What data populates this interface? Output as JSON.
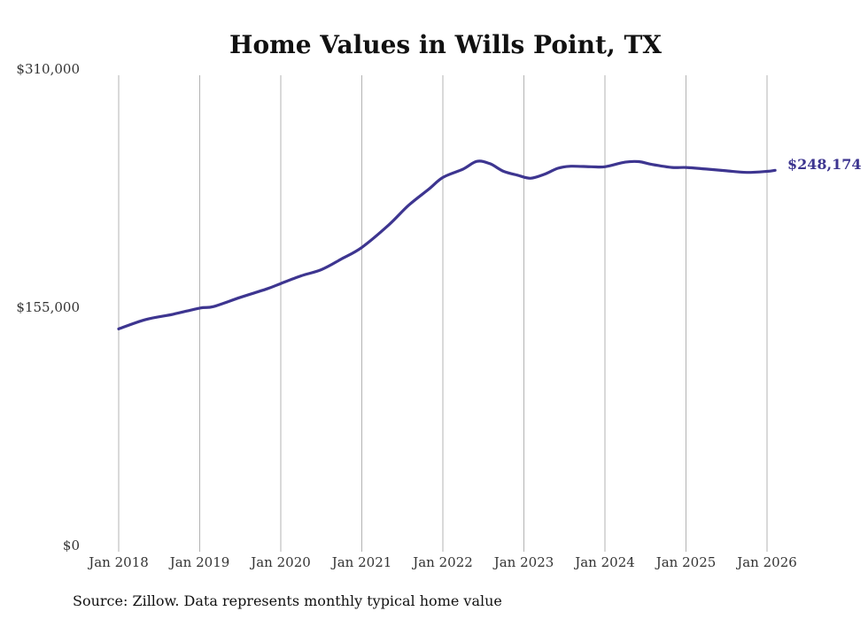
{
  "chart_data": {
    "type": "line",
    "title": "Home Values in Wills Point, TX",
    "xlabel": "",
    "ylabel": "",
    "ylim": [
      0,
      310000
    ],
    "yticks": [
      {
        "value": 0,
        "label": "$0"
      },
      {
        "value": 155000,
        "label": "$155,000"
      },
      {
        "value": 310000,
        "label": "$310,000"
      }
    ],
    "xticks": [
      {
        "value": 2018,
        "label": "Jan 2018"
      },
      {
        "value": 2019,
        "label": "Jan 2019"
      },
      {
        "value": 2020,
        "label": "Jan 2020"
      },
      {
        "value": 2021,
        "label": "Jan 2021"
      },
      {
        "value": 2022,
        "label": "Jan 2022"
      },
      {
        "value": 2023,
        "label": "Jan 2023"
      },
      {
        "value": 2024,
        "label": "Jan 2024"
      },
      {
        "value": 2025,
        "label": "Jan 2025"
      },
      {
        "value": 2026,
        "label": "Jan 2026"
      }
    ],
    "xlim": [
      2018,
      2026.1
    ],
    "grid": "vertical",
    "series": [
      {
        "name": "Typical home value",
        "color": "#3d3590",
        "x": [
          2018.0,
          2018.33,
          2018.67,
          2019.0,
          2019.17,
          2019.5,
          2019.83,
          2020.0,
          2020.25,
          2020.5,
          2020.75,
          2021.0,
          2021.33,
          2021.58,
          2021.83,
          2022.0,
          2022.25,
          2022.42,
          2022.58,
          2022.75,
          2022.92,
          2023.08,
          2023.25,
          2023.42,
          2023.58,
          2023.83,
          2024.0,
          2024.25,
          2024.42,
          2024.58,
          2024.83,
          2025.0,
          2025.25,
          2025.5,
          2025.75,
          2026.0,
          2026.1
        ],
        "y": [
          145000,
          151000,
          154500,
          158500,
          159500,
          165500,
          171000,
          174500,
          179500,
          183500,
          190500,
          198000,
          212500,
          225500,
          236000,
          243500,
          249000,
          254000,
          252500,
          247500,
          245000,
          243000,
          245500,
          249500,
          250800,
          250500,
          250500,
          253500,
          253800,
          252000,
          250000,
          250000,
          249000,
          247800,
          246800,
          247500,
          248174
        ]
      }
    ],
    "end_label": "$248,174",
    "source": "Source: Zillow. Data represents monthly typical home value"
  }
}
